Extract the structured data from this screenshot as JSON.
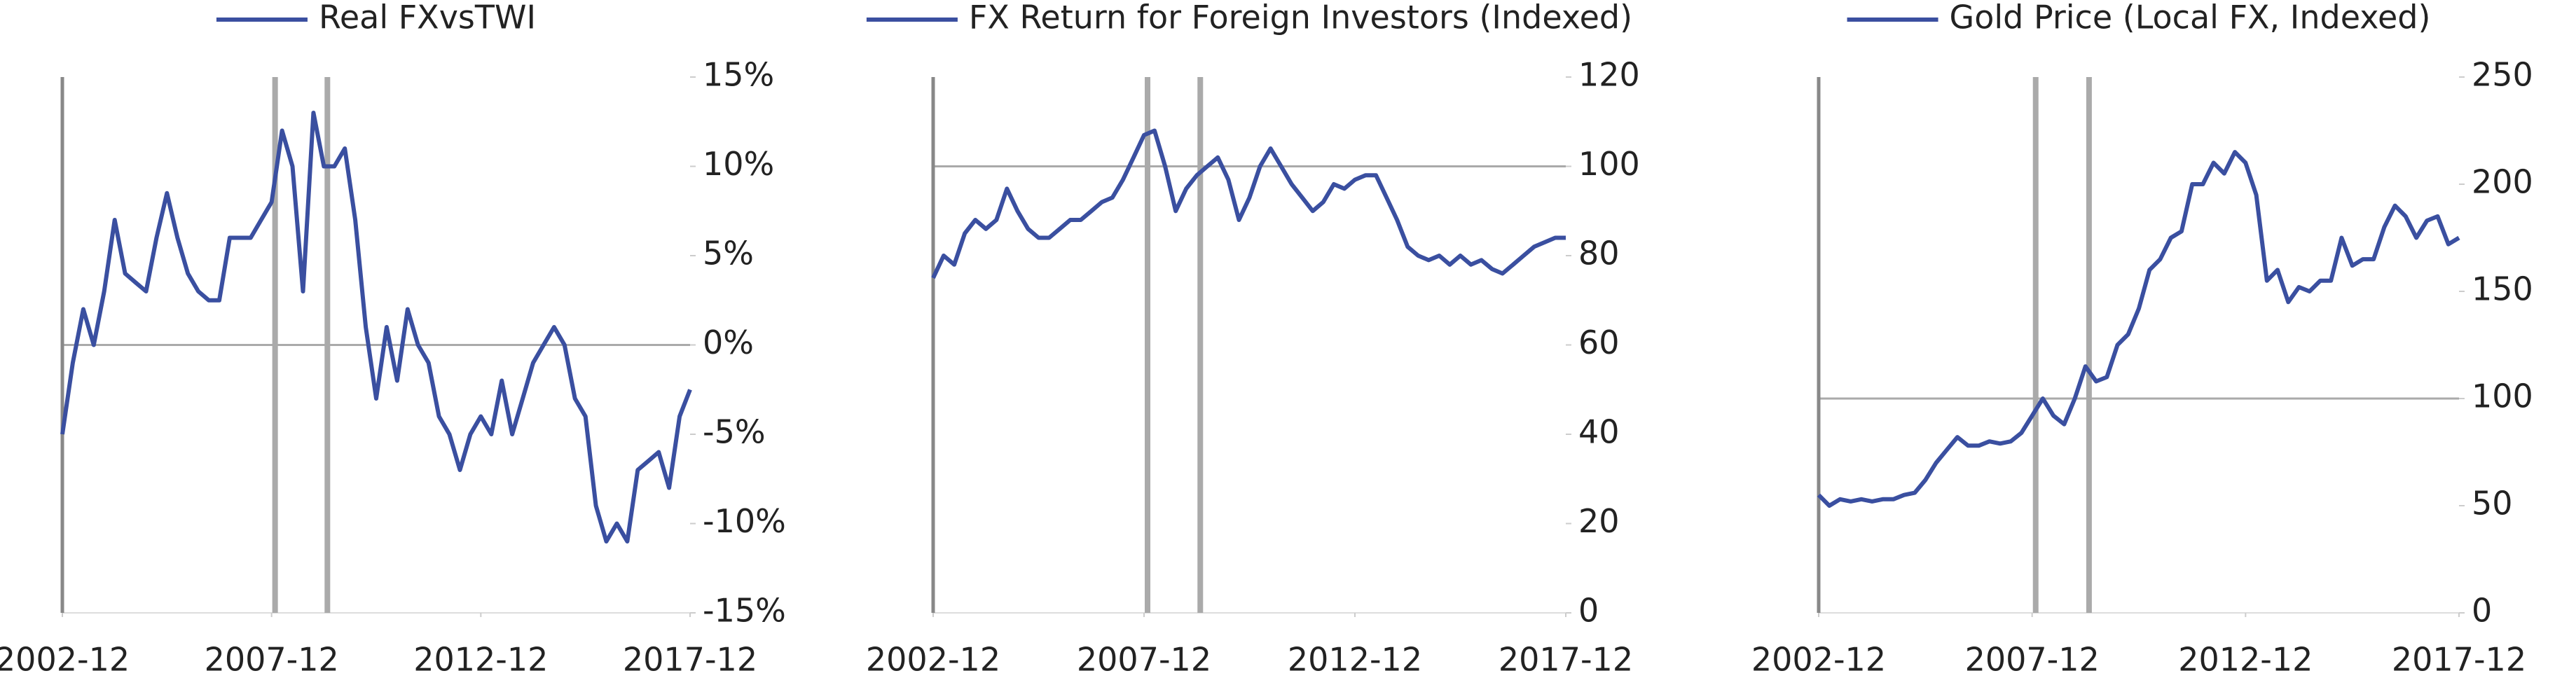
{
  "chart_data": [
    {
      "type": "line",
      "hline": 0,
      "vlines": [
        "2008-01",
        "2009-04"
      ],
      "xlim": [
        "2002-12",
        "2017-12"
      ],
      "xticks": [
        "2002-12",
        "2007-12",
        "2012-12",
        "2017-12"
      ],
      "ylim": [
        -15,
        15
      ],
      "yticks": [
        {
          "value": -15,
          "label": "-15%"
        },
        {
          "value": -10,
          "label": "-10%"
        },
        {
          "value": -5,
          "label": "-5%"
        },
        {
          "value": 0,
          "label": "0%"
        },
        {
          "value": 5,
          "label": "5%"
        },
        {
          "value": 10,
          "label": "10%"
        },
        {
          "value": 15,
          "label": "15%"
        }
      ],
      "x": [
        "2002-12",
        "2003-03",
        "2003-06",
        "2003-09",
        "2003-12",
        "2004-03",
        "2004-06",
        "2004-09",
        "2004-12",
        "2005-03",
        "2005-06",
        "2005-09",
        "2005-12",
        "2006-03",
        "2006-06",
        "2006-09",
        "2006-12",
        "2007-03",
        "2007-06",
        "2007-09",
        "2007-12",
        "2008-03",
        "2008-06",
        "2008-09",
        "2008-12",
        "2009-03",
        "2009-06",
        "2009-09",
        "2009-12",
        "2010-03",
        "2010-06",
        "2010-09",
        "2010-12",
        "2011-03",
        "2011-06",
        "2011-09",
        "2011-12",
        "2012-03",
        "2012-06",
        "2012-09",
        "2012-12",
        "2013-03",
        "2013-06",
        "2013-09",
        "2013-12",
        "2014-03",
        "2014-06",
        "2014-09",
        "2014-12",
        "2015-03",
        "2015-06",
        "2015-09",
        "2015-12",
        "2016-03",
        "2016-06",
        "2016-09",
        "2016-12",
        "2017-03",
        "2017-06",
        "2017-09",
        "2017-12"
      ],
      "series": [
        {
          "name": "Real FXvsTWI",
          "color": "#3a4fa0",
          "values": [
            -5,
            -1,
            2,
            0,
            3,
            7,
            4,
            3.5,
            3,
            6,
            8.5,
            6,
            4,
            3,
            2.5,
            2.5,
            6,
            6,
            6,
            7,
            8,
            12,
            10,
            3,
            13,
            10,
            10,
            11,
            7,
            1,
            -3,
            1,
            -2,
            2,
            0,
            -1,
            -4,
            -5,
            -7,
            -5,
            -4,
            -5,
            -2,
            -5,
            -3,
            -1,
            0,
            1,
            0,
            -3,
            -4,
            -9,
            -11,
            -10,
            -11,
            -7,
            -6.5,
            -6,
            -8,
            -4,
            -2.5
          ]
        }
      ]
    },
    {
      "type": "line",
      "hline": 100,
      "vlines": [
        "2008-01",
        "2009-04"
      ],
      "xlim": [
        "2002-12",
        "2017-12"
      ],
      "xticks": [
        "2002-12",
        "2007-12",
        "2012-12",
        "2017-12"
      ],
      "ylim": [
        0,
        120
      ],
      "yticks": [
        0,
        20,
        40,
        60,
        80,
        100,
        120
      ],
      "x": [
        "2002-12",
        "2003-03",
        "2003-06",
        "2003-09",
        "2003-12",
        "2004-03",
        "2004-06",
        "2004-09",
        "2004-12",
        "2005-03",
        "2005-06",
        "2005-09",
        "2005-12",
        "2006-03",
        "2006-06",
        "2006-09",
        "2006-12",
        "2007-03",
        "2007-06",
        "2007-09",
        "2007-12",
        "2008-03",
        "2008-06",
        "2008-09",
        "2008-12",
        "2009-03",
        "2009-06",
        "2009-09",
        "2009-12",
        "2010-03",
        "2010-06",
        "2010-09",
        "2010-12",
        "2011-03",
        "2011-06",
        "2011-09",
        "2011-12",
        "2012-03",
        "2012-06",
        "2012-09",
        "2012-12",
        "2013-03",
        "2013-06",
        "2013-09",
        "2013-12",
        "2014-03",
        "2014-06",
        "2014-09",
        "2014-12",
        "2015-03",
        "2015-06",
        "2015-09",
        "2015-12",
        "2016-03",
        "2016-06",
        "2016-09",
        "2016-12",
        "2017-03",
        "2017-06",
        "2017-09",
        "2017-12"
      ],
      "series": [
        {
          "name": "FX Return for Foreign Investors (Indexed)",
          "color": "#3a4fa0",
          "values": [
            75,
            80,
            78,
            85,
            88,
            86,
            88,
            95,
            90,
            86,
            84,
            84,
            86,
            88,
            88,
            90,
            92,
            93,
            97,
            102,
            107,
            108,
            100,
            90,
            95,
            98,
            100,
            102,
            97,
            88,
            93,
            100,
            104,
            100,
            96,
            93,
            90,
            92,
            96,
            95,
            97,
            98,
            98,
            93,
            88,
            82,
            80,
            79,
            80,
            78,
            80,
            78,
            79,
            77,
            76,
            78,
            80,
            82,
            83,
            84,
            84
          ]
        }
      ]
    },
    {
      "type": "line",
      "hline": 100,
      "vlines": [
        "2008-01",
        "2009-04"
      ],
      "xlim": [
        "2002-12",
        "2017-12"
      ],
      "xticks": [
        "2002-12",
        "2007-12",
        "2012-12",
        "2017-12"
      ],
      "ylim": [
        0,
        250
      ],
      "yticks": [
        0,
        50,
        100,
        150,
        200,
        250
      ],
      "x": [
        "2002-12",
        "2003-03",
        "2003-06",
        "2003-09",
        "2003-12",
        "2004-03",
        "2004-06",
        "2004-09",
        "2004-12",
        "2005-03",
        "2005-06",
        "2005-09",
        "2005-12",
        "2006-03",
        "2006-06",
        "2006-09",
        "2006-12",
        "2007-03",
        "2007-06",
        "2007-09",
        "2007-12",
        "2008-03",
        "2008-06",
        "2008-09",
        "2008-12",
        "2009-03",
        "2009-06",
        "2009-09",
        "2009-12",
        "2010-03",
        "2010-06",
        "2010-09",
        "2010-12",
        "2011-03",
        "2011-06",
        "2011-09",
        "2011-12",
        "2012-03",
        "2012-06",
        "2012-09",
        "2012-12",
        "2013-03",
        "2013-06",
        "2013-09",
        "2013-12",
        "2014-03",
        "2014-06",
        "2014-09",
        "2014-12",
        "2015-03",
        "2015-06",
        "2015-09",
        "2015-12",
        "2016-03",
        "2016-06",
        "2016-09",
        "2016-12",
        "2017-03",
        "2017-06",
        "2017-09",
        "2017-12"
      ],
      "series": [
        {
          "name": "Gold Price (Local FX, Indexed)",
          "color": "#3a4fa0",
          "values": [
            55,
            50,
            53,
            52,
            53,
            52,
            53,
            53,
            55,
            56,
            62,
            70,
            76,
            82,
            78,
            78,
            80,
            79,
            80,
            84,
            92,
            100,
            92,
            88,
            100,
            115,
            108,
            110,
            125,
            130,
            142,
            160,
            165,
            175,
            178,
            200,
            200,
            210,
            205,
            215,
            210,
            195,
            155,
            160,
            145,
            152,
            150,
            155,
            155,
            175,
            162,
            165,
            165,
            180,
            190,
            185,
            175,
            183,
            185,
            172,
            175
          ]
        }
      ]
    }
  ]
}
